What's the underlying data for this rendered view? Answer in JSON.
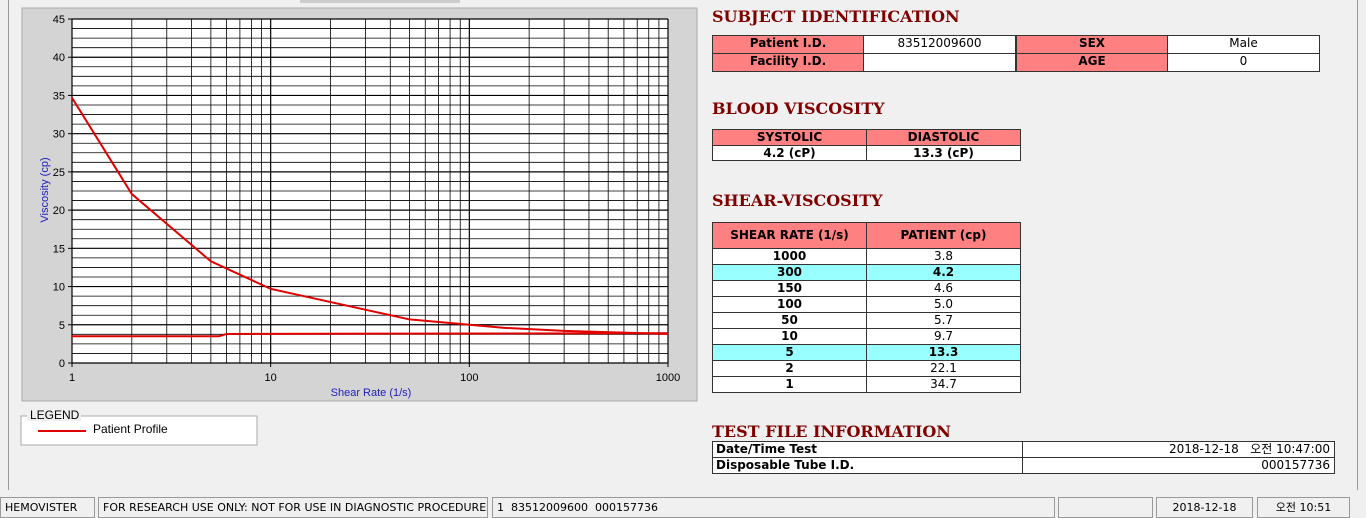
{
  "chart_data": {
    "type": "line",
    "ylabel": "Viscosity (cp)",
    "xlabel": "Shear Rate (1/s)",
    "xscale": "log",
    "xlim": [
      1,
      1000
    ],
    "xticks": [
      1,
      10,
      100,
      1000
    ],
    "x_minor_ticks": [
      2,
      3,
      4,
      5,
      6,
      7,
      8,
      9,
      20,
      30,
      40,
      50,
      60,
      70,
      80,
      90,
      200,
      300,
      400,
      500,
      600,
      700,
      800,
      900
    ],
    "ylim": [
      0,
      45
    ],
    "yticks": [
      0,
      5,
      10,
      15,
      20,
      25,
      30,
      35,
      40,
      45
    ],
    "y_minor_ticks": [
      1.25,
      2.5,
      3.75,
      6.25,
      7.5,
      8.75,
      11.25,
      12.5,
      13.75,
      16.25,
      17.5,
      18.75,
      21.25,
      22.5,
      23.75,
      26.25,
      27.5,
      28.75,
      31.25,
      32.5,
      33.75,
      36.25,
      37.5,
      38.75,
      41.25,
      42.5,
      43.75
    ],
    "grid": true,
    "legend_title": "LEGEND",
    "series": [
      {
        "name": "Patient Profile",
        "color": "#e00000",
        "x": [
          1,
          2,
          5,
          10,
          50,
          100,
          150,
          300,
          1000
        ],
        "values": [
          34.7,
          22.1,
          13.3,
          9.7,
          5.7,
          5.0,
          4.6,
          4.2,
          3.8
        ]
      },
      {
        "color": "#e00000",
        "x": [
          1,
          5.5,
          6,
          1000
        ],
        "values": [
          3.5,
          3.5,
          3.8,
          3.9
        ]
      }
    ]
  },
  "subject": {
    "title": "SUBJECT IDENTIFICATION",
    "fields": [
      {
        "label": "Patient I.D.",
        "value": "83512009600"
      },
      {
        "label": "SEX",
        "value": "Male"
      },
      {
        "label": "Facility I.D."
      },
      {
        "label": "AGE",
        "value": "0"
      }
    ]
  },
  "blood": {
    "title": "BLOOD VISCOSITY",
    "headers": [
      "SYSTOLIC",
      "DIASTOLIC"
    ],
    "values": [
      "4.2 (cP)",
      "13.3 (cP)"
    ]
  },
  "shear": {
    "title": "SHEAR-VISCOSITY",
    "headers": [
      "SHEAR RATE (1/s)",
      "PATIENT (cp)"
    ],
    "rows": [
      {
        "rate": "1000",
        "patient": "3.8"
      },
      {
        "rate": "300",
        "patient": "4.2",
        "highlight": true
      },
      {
        "rate": "150",
        "patient": "4.6"
      },
      {
        "rate": "100",
        "patient": "5.0"
      },
      {
        "rate": "50",
        "patient": "5.7"
      },
      {
        "rate": "10",
        "patient": "9.7"
      },
      {
        "rate": "5",
        "patient": "13.3",
        "highlight": true
      },
      {
        "rate": "2",
        "patient": "22.1"
      },
      {
        "rate": "1",
        "patient": "34.7"
      }
    ]
  },
  "testfile": {
    "title": "TEST FILE INFORMATION",
    "rows": [
      {
        "label": "Date/Time Test",
        "value": "2018-12-18   오전 10:47:00"
      },
      {
        "label": "Disposable Tube I.D.",
        "value": "000157736"
      }
    ]
  },
  "status": [
    "HEMOVISTER",
    "FOR RESEARCH USE ONLY: NOT FOR USE IN DIAGNOSTIC PROCEDURES",
    "1  83512009600  000157736",
    null,
    "2018-12-18",
    "오전 10:51"
  ]
}
